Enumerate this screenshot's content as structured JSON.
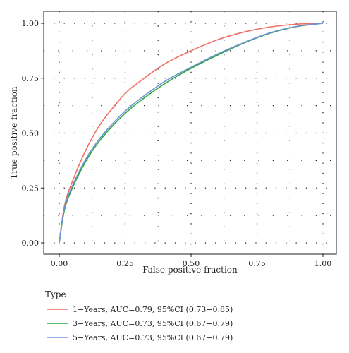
{
  "chart_data": {
    "type": "line",
    "xlabel": "False positive fraction",
    "ylabel": "True positive fraction",
    "xlim": [
      0,
      1
    ],
    "ylim": [
      0,
      1
    ],
    "x_ticks": [
      "0.00",
      "0.25",
      "0.50",
      "0.75",
      "1.00"
    ],
    "y_ticks": [
      "0.00",
      "0.25",
      "0.50",
      "0.75",
      "1.00"
    ],
    "grid": true,
    "legend_title": "Type",
    "legend_position": "bottom",
    "series": [
      {
        "name": "1−Years, AUC=0.79, 95%CI (0.73−0.85)",
        "color": "#f07066",
        "x": [
          0,
          0.02,
          0.05,
          0.1,
          0.15,
          0.2,
          0.25,
          0.3,
          0.4,
          0.5,
          0.6,
          0.7,
          0.8,
          0.9,
          1.0
        ],
        "y": [
          0,
          0.17,
          0.28,
          0.42,
          0.53,
          0.61,
          0.68,
          0.73,
          0.815,
          0.875,
          0.925,
          0.96,
          0.983,
          0.996,
          1.0
        ]
      },
      {
        "name": "3−Years, AUC=0.73, 95%CI (0.67−0.79)",
        "color": "#2aa640",
        "x": [
          0,
          0.02,
          0.05,
          0.1,
          0.15,
          0.2,
          0.25,
          0.3,
          0.4,
          0.5,
          0.6,
          0.7,
          0.8,
          0.9,
          1.0
        ],
        "y": [
          0,
          0.15,
          0.25,
          0.37,
          0.46,
          0.53,
          0.59,
          0.64,
          0.725,
          0.795,
          0.855,
          0.91,
          0.955,
          0.985,
          1.0
        ]
      },
      {
        "name": "5−Years, AUC=0.73, 95%CI (0.67−0.79)",
        "color": "#6f93d6",
        "x": [
          0,
          0.02,
          0.05,
          0.1,
          0.15,
          0.2,
          0.25,
          0.3,
          0.4,
          0.5,
          0.6,
          0.7,
          0.8,
          0.9,
          1.0
        ],
        "y": [
          0,
          0.16,
          0.26,
          0.38,
          0.47,
          0.54,
          0.6,
          0.65,
          0.735,
          0.8,
          0.86,
          0.912,
          0.957,
          0.986,
          1.0
        ]
      }
    ]
  }
}
